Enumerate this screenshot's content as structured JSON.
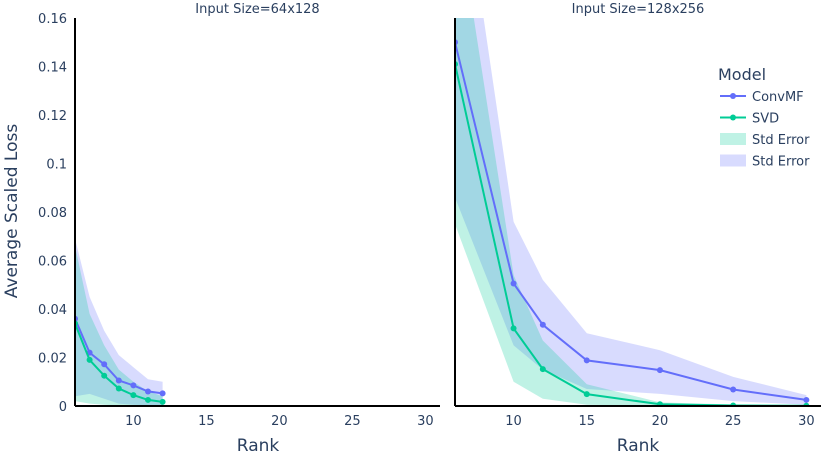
{
  "chart_data": {
    "type": "line",
    "ylabel": "Average Scaled Loss",
    "xlabel": "Rank",
    "ylim": [
      0,
      0.16
    ],
    "yticks": [
      0,
      0.02,
      0.04,
      0.06,
      0.08,
      0.1,
      0.12,
      0.14,
      0.16
    ],
    "ytick_labels": [
      "0",
      "0.02",
      "0.04",
      "0.06",
      "0.08",
      "0.1",
      "0.12",
      "0.14",
      "0.16"
    ],
    "xlim": [
      6,
      31
    ],
    "xticks": [
      10,
      15,
      20,
      25,
      30
    ],
    "xtick_labels": [
      "10",
      "15",
      "20",
      "25",
      "30"
    ],
    "grid": false,
    "legend": {
      "title": "Model",
      "placement": "top-right",
      "entries": [
        {
          "label": "ConvMF",
          "kind": "line",
          "color": "#636efa"
        },
        {
          "label": "SVD",
          "kind": "line",
          "color": "#00cc96"
        },
        {
          "label": "Std Error",
          "kind": "band",
          "color": "#00cc96"
        },
        {
          "label": "Std Error",
          "kind": "band",
          "color": "#636efa"
        }
      ]
    },
    "panels": [
      {
        "title": "Input Size=64x128",
        "series": [
          {
            "name": "ConvMF",
            "color": "#636efa",
            "x": [
              6,
              7,
              8,
              9,
              10,
              11,
              12
            ],
            "y": [
              0.036,
              0.022,
              0.0172,
              0.0105,
              0.0085,
              0.006,
              0.0052
            ],
            "lower": [
              0.004,
              0.005,
              0.003,
              0.001,
              0.0005,
              0.0003,
              0.0002
            ],
            "upper": [
              0.069,
              0.045,
              0.031,
              0.021,
              0.016,
              0.011,
              0.01
            ]
          },
          {
            "name": "SVD",
            "color": "#00cc96",
            "x": [
              6,
              7,
              8,
              9,
              10,
              11,
              12
            ],
            "y": [
              0.034,
              0.019,
              0.0125,
              0.0072,
              0.0045,
              0.0025,
              0.0017
            ],
            "lower": [
              0.002,
              0.001,
              0.0005,
              0.0002,
              0.0001,
              0.0001,
              0.0001
            ],
            "upper": [
              0.066,
              0.038,
              0.025,
              0.015,
              0.01,
              0.006,
              0.004
            ]
          }
        ]
      },
      {
        "title": "Input Size=128x256",
        "series": [
          {
            "name": "ConvMF",
            "color": "#636efa",
            "x": [
              6,
              10,
              12,
              15,
              20,
              25,
              30
            ],
            "y": [
              0.15,
              0.0505,
              0.0335,
              0.0188,
              0.0148,
              0.0068,
              0.0025
            ],
            "lower": [
              0.086,
              0.025,
              0.015,
              0.007,
              0.005,
              0.002,
              0.0005
            ],
            "upper": [
              0.24,
              0.076,
              0.052,
              0.03,
              0.023,
              0.012,
              0.0045
            ]
          },
          {
            "name": "SVD",
            "color": "#00cc96",
            "x": [
              6,
              10,
              12,
              15,
              20,
              25,
              30
            ],
            "y": [
              0.141,
              0.032,
              0.0152,
              0.0049,
              0.0007,
              0.0002,
              0.0001
            ],
            "lower": [
              0.075,
              0.01,
              0.003,
              0.0005,
              0.0001,
              0.0,
              0.0
            ],
            "upper": [
              0.21,
              0.054,
              0.027,
              0.009,
              0.0015,
              0.0006,
              0.0003
            ]
          }
        ]
      }
    ]
  }
}
